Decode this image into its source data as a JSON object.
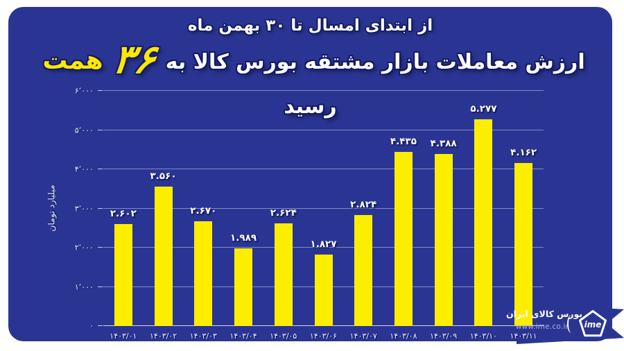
{
  "page": {
    "background": "#ffffff",
    "card_color": "#2a3593",
    "accent_yellow": "#fdee00"
  },
  "header": {
    "subtitle": "از ابتدای امسال تا ۳۰ بهمن ماه",
    "title_prefix": "ارزش معاملات بازار مشتقه بورس کالا به",
    "title_number": "۳۶",
    "title_unit": "همت",
    "title_suffix": "رسید"
  },
  "chart_data": {
    "type": "bar",
    "title": "ارزش معاملات بازار مشتقه بورس کالا به ۳۶ همت رسید",
    "xlabel": "",
    "ylabel": "میلیارد تومان",
    "ylim": [
      0,
      6000
    ],
    "grid": true,
    "bar_color": "#fdee00",
    "categories": [
      "۱۴۰۳/۰۱",
      "۱۴۰۳/۰۲",
      "۱۴۰۳/۰۳",
      "۱۴۰۳/۰۴",
      "۱۴۰۳/۰۵",
      "۱۴۰۳/۰۶",
      "۱۴۰۳/۰۷",
      "۱۴۰۳/۰۸",
      "۱۴۰۳/۰۹",
      "۱۴۰۳/۱۰",
      "۱۴۰۳/۱۱"
    ],
    "values": [
      2602,
      3560,
      2670,
      1989,
      2624,
      1827,
      2824,
      4435,
      4388,
      5277,
      4162
    ],
    "value_labels": [
      "۲.۶۰۲",
      "۳.۵۶۰",
      "۲.۶۷۰",
      "۱.۹۸۹",
      "۲.۶۲۴",
      "۱.۸۲۷",
      "۲.۸۲۴",
      "۴.۴۳۵",
      "۴.۳۸۸",
      "۵.۲۷۷",
      "۴.۱۶۲"
    ],
    "y_ticks": [
      {
        "value": 0,
        "label": "۰"
      },
      {
        "value": 1000,
        "label": "۱٬۰۰۰"
      },
      {
        "value": 2000,
        "label": "۲٬۰۰۰"
      },
      {
        "value": 3000,
        "label": "۳٬۰۰۰"
      },
      {
        "value": 4000,
        "label": "۴٬۰۰۰"
      },
      {
        "value": 5000,
        "label": "۵٬۰۰۰"
      },
      {
        "value": 6000,
        "label": "۶٬۰۰۰"
      }
    ]
  },
  "footer": {
    "brand_name": "بورس کالای ایران",
    "brand_url": "www.ime.co.ir",
    "logo_text": "ime"
  }
}
